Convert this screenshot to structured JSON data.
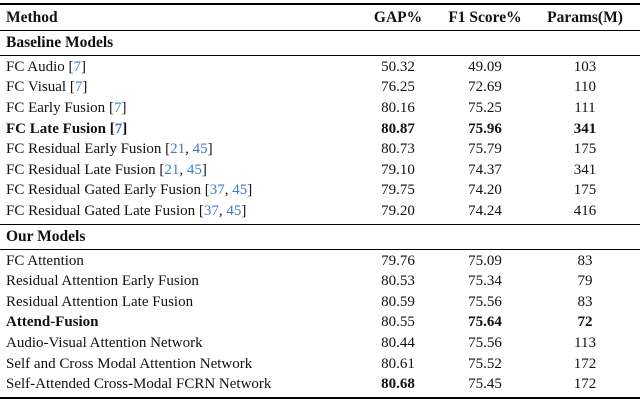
{
  "citation_color": "#3d7dc4",
  "citation_format": {
    "open": " [",
    "separator": ", ",
    "close": "]"
  },
  "table": {
    "columns": [
      "Method",
      "GAP%",
      "F1 Score%",
      "Params(M)"
    ],
    "sections": [
      {
        "title": "Baseline Models",
        "rows": [
          {
            "method": "FC Audio",
            "citations": [
              "7"
            ],
            "gap": "50.32",
            "f1": "49.09",
            "params": "103"
          },
          {
            "method": "FC Visual",
            "citations": [
              "7"
            ],
            "gap": "76.25",
            "f1": "72.69",
            "params": "110"
          },
          {
            "method": "FC Early Fusion",
            "citations": [
              "7"
            ],
            "gap": "80.16",
            "f1": "75.25",
            "params": "111"
          },
          {
            "method": "FC Late Fusion",
            "citations": [
              "7"
            ],
            "gap": "80.87",
            "f1": "75.96",
            "params": "341",
            "bold": {
              "method": true,
              "gap": true,
              "f1": true,
              "params": true
            }
          },
          {
            "method": "FC Residual Early Fusion",
            "citations": [
              "21",
              "45"
            ],
            "gap": "80.73",
            "f1": "75.79",
            "params": "175"
          },
          {
            "method": "FC Residual Late Fusion",
            "citations": [
              "21",
              "45"
            ],
            "gap": "79.10",
            "f1": "74.37",
            "params": "341"
          },
          {
            "method": "FC Residual Gated Early Fusion",
            "citations": [
              "37",
              "45"
            ],
            "gap": "79.75",
            "f1": "74.20",
            "params": "175"
          },
          {
            "method": "FC Residual Gated Late Fusion",
            "citations": [
              "37",
              "45"
            ],
            "gap": "79.20",
            "f1": "74.24",
            "params": "416"
          }
        ]
      },
      {
        "title": "Our Models",
        "rows": [
          {
            "method": "FC Attention",
            "citations": [],
            "gap": "79.76",
            "f1": "75.09",
            "params": "83"
          },
          {
            "method": "Residual Attention Early Fusion",
            "citations": [],
            "gap": "80.53",
            "f1": "75.34",
            "params": "79"
          },
          {
            "method": "Residual Attention Late Fusion",
            "citations": [],
            "gap": "80.59",
            "f1": "75.56",
            "params": "83"
          },
          {
            "method": "Attend-Fusion",
            "citations": [],
            "gap": "80.55",
            "f1": "75.64",
            "params": "72",
            "bold": {
              "method": true,
              "gap": false,
              "f1": true,
              "params": true
            }
          },
          {
            "method": "Audio-Visual Attention Network",
            "citations": [],
            "gap": "80.44",
            "f1": "75.56",
            "params": "113"
          },
          {
            "method": "Self and Cross Modal Attention Network",
            "citations": [],
            "gap": "80.61",
            "f1": "75.52",
            "params": "172"
          },
          {
            "method": "Self-Attended Cross-Modal FCRN Network",
            "citations": [],
            "gap": "80.68",
            "f1": "75.45",
            "params": "172",
            "bold": {
              "method": false,
              "gap": true,
              "f1": false,
              "params": false
            }
          }
        ]
      }
    ]
  }
}
